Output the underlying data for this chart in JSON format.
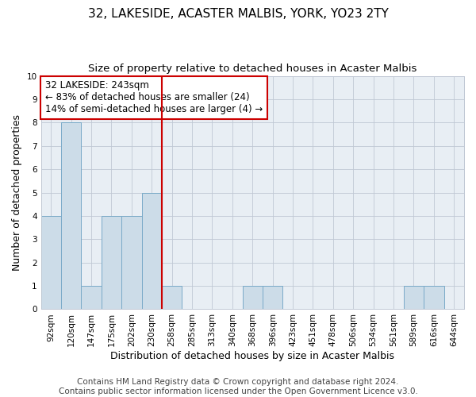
{
  "title": "32, LAKESIDE, ACASTER MALBIS, YORK, YO23 2TY",
  "subtitle": "Size of property relative to detached houses in Acaster Malbis",
  "xlabel": "Distribution of detached houses by size in Acaster Malbis",
  "ylabel": "Number of detached properties",
  "categories": [
    "92sqm",
    "120sqm",
    "147sqm",
    "175sqm",
    "202sqm",
    "230sqm",
    "258sqm",
    "285sqm",
    "313sqm",
    "340sqm",
    "368sqm",
    "396sqm",
    "423sqm",
    "451sqm",
    "478sqm",
    "506sqm",
    "534sqm",
    "561sqm",
    "589sqm",
    "616sqm",
    "644sqm"
  ],
  "values": [
    4,
    8,
    1,
    4,
    4,
    5,
    1,
    0,
    0,
    0,
    1,
    1,
    0,
    0,
    0,
    0,
    0,
    0,
    1,
    1,
    0
  ],
  "bar_color": "#ccdce8",
  "bar_edge_color": "#7aaac8",
  "vline_x_index": 6,
  "vline_color": "#cc0000",
  "ylim": [
    0,
    10
  ],
  "yticks": [
    0,
    1,
    2,
    3,
    4,
    5,
    6,
    7,
    8,
    9,
    10
  ],
  "annotation_title": "32 LAKESIDE: 243sqm",
  "annotation_line1": "← 83% of detached houses are smaller (24)",
  "annotation_line2": "14% of semi-detached houses are larger (4) →",
  "annotation_box_color": "#cc0000",
  "footer1": "Contains HM Land Registry data © Crown copyright and database right 2024.",
  "footer2": "Contains public sector information licensed under the Open Government Licence v3.0.",
  "title_fontsize": 11,
  "subtitle_fontsize": 9.5,
  "xlabel_fontsize": 9,
  "ylabel_fontsize": 9,
  "tick_fontsize": 7.5,
  "annotation_fontsize": 8.5,
  "footer_fontsize": 7.5,
  "bg_color": "#e8eef4"
}
